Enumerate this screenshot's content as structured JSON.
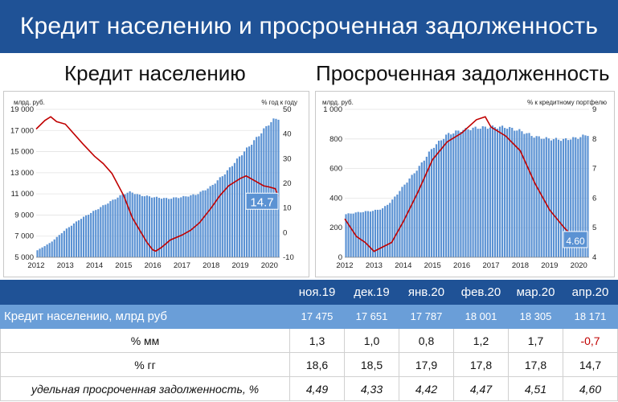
{
  "header": {
    "title": "Кредит населению и просроченная задолженность"
  },
  "left_panel": {
    "subtitle": "Кредит населению"
  },
  "right_panel": {
    "subtitle": "Просроченная задолженность"
  },
  "chart_data": [
    {
      "type": "bar+line",
      "xlabels": [
        "2012",
        "2013",
        "2014",
        "2015",
        "2016",
        "2017",
        "2018",
        "2019",
        "2020"
      ],
      "ylabel_left": "млрд. руб.",
      "ylabel_right": "% год к году",
      "yticks_left": [
        "5 000",
        "7 000",
        "9 000",
        "11 000",
        "13 000",
        "15 000",
        "17 000",
        "19 000"
      ],
      "yticks_right": [
        "-10",
        "0",
        "10",
        "20",
        "30",
        "40",
        "50"
      ],
      "ylim_left": [
        5000,
        19000
      ],
      "ylim_right": [
        -10,
        50
      ],
      "x_range": [
        2012.0,
        2020.35
      ],
      "series": [
        {
          "type": "bar",
          "axis": "left",
          "points": [
            [
              2012.0,
              5600
            ],
            [
              2012.5,
              6400
            ],
            [
              2013.0,
              7600
            ],
            [
              2013.5,
              8600
            ],
            [
              2014.0,
              9400
            ],
            [
              2014.5,
              10200
            ],
            [
              2015.0,
              11000
            ],
            [
              2015.25,
              11200
            ],
            [
              2015.5,
              10900
            ],
            [
              2016.0,
              10700
            ],
            [
              2016.5,
              10550
            ],
            [
              2017.0,
              10700
            ],
            [
              2017.5,
              10950
            ],
            [
              2018.0,
              11700
            ],
            [
              2018.5,
              13000
            ],
            [
              2019.0,
              14600
            ],
            [
              2019.5,
              16100
            ],
            [
              2020.0,
              17700
            ],
            [
              2020.2,
              18100
            ],
            [
              2020.3,
              18171
            ]
          ]
        },
        {
          "type": "line",
          "axis": "right",
          "color": "#c00000",
          "points": [
            [
              2012.0,
              42
            ],
            [
              2012.3,
              45.5
            ],
            [
              2012.5,
              47
            ],
            [
              2012.7,
              45
            ],
            [
              2013.0,
              44
            ],
            [
              2013.3,
              40
            ],
            [
              2013.6,
              36
            ],
            [
              2014.0,
              31
            ],
            [
              2014.3,
              28
            ],
            [
              2014.6,
              24
            ],
            [
              2015.0,
              15
            ],
            [
              2015.3,
              6
            ],
            [
              2015.6,
              0
            ],
            [
              2015.8,
              -4
            ],
            [
              2016.0,
              -7
            ],
            [
              2016.1,
              -7.5
            ],
            [
              2016.3,
              -6
            ],
            [
              2016.6,
              -3
            ],
            [
              2017.0,
              -1
            ],
            [
              2017.3,
              1
            ],
            [
              2017.6,
              4
            ],
            [
              2018.0,
              10
            ],
            [
              2018.3,
              15
            ],
            [
              2018.6,
              19
            ],
            [
              2019.0,
              22
            ],
            [
              2019.2,
              23
            ],
            [
              2019.5,
              21
            ],
            [
              2019.8,
              19
            ],
            [
              2020.0,
              18.5
            ],
            [
              2020.2,
              17.8
            ],
            [
              2020.3,
              14.7
            ]
          ]
        }
      ],
      "annotation": "14.7"
    },
    {
      "type": "bar+line",
      "xlabels": [
        "2012",
        "2013",
        "2014",
        "2015",
        "2016",
        "2017",
        "2018",
        "2019",
        "2020"
      ],
      "ylabel_left": "млрд. руб.",
      "ylabel_right": "% к кредитному портфелю",
      "yticks_left": [
        "0",
        "200",
        "400",
        "600",
        "800",
        "1 000"
      ],
      "yticks_right": [
        "4",
        "5",
        "6",
        "7",
        "8",
        "9"
      ],
      "ylim_left": [
        0,
        1000
      ],
      "ylim_right": [
        4,
        9
      ],
      "x_range": [
        2012.0,
        2020.35
      ],
      "series": [
        {
          "type": "bar",
          "axis": "left",
          "points": [
            [
              2012.0,
              290
            ],
            [
              2012.5,
              305
            ],
            [
              2013.0,
              315
            ],
            [
              2013.3,
              330
            ],
            [
              2013.6,
              380
            ],
            [
              2014.0,
              480
            ],
            [
              2014.5,
              600
            ],
            [
              2015.0,
              740
            ],
            [
              2015.5,
              830
            ],
            [
              2016.0,
              860
            ],
            [
              2016.5,
              875
            ],
            [
              2017.0,
              880
            ],
            [
              2017.5,
              880
            ],
            [
              2018.0,
              855
            ],
            [
              2018.5,
              815
            ],
            [
              2019.0,
              800
            ],
            [
              2019.5,
              795
            ],
            [
              2020.0,
              810
            ],
            [
              2020.3,
              830
            ]
          ]
        },
        {
          "type": "line",
          "axis": "right",
          "color": "#c00000",
          "points": [
            [
              2012.0,
              5.3
            ],
            [
              2012.2,
              5.0
            ],
            [
              2012.4,
              4.7
            ],
            [
              2012.7,
              4.5
            ],
            [
              2013.0,
              4.2
            ],
            [
              2013.3,
              4.35
            ],
            [
              2013.6,
              4.5
            ],
            [
              2014.0,
              5.2
            ],
            [
              2014.5,
              6.2
            ],
            [
              2015.0,
              7.3
            ],
            [
              2015.5,
              7.9
            ],
            [
              2016.0,
              8.2
            ],
            [
              2016.5,
              8.65
            ],
            [
              2016.8,
              8.75
            ],
            [
              2017.0,
              8.4
            ],
            [
              2017.5,
              8.1
            ],
            [
              2018.0,
              7.6
            ],
            [
              2018.5,
              6.5
            ],
            [
              2019.0,
              5.6
            ],
            [
              2019.5,
              5.0
            ],
            [
              2019.8,
              4.7
            ],
            [
              2020.0,
              4.45
            ],
            [
              2020.3,
              4.6
            ]
          ]
        }
      ],
      "annotation": "4.60"
    }
  ],
  "table": {
    "months": [
      "ноя.19",
      "дек.19",
      "янв.20",
      "фев.20",
      "мар.20",
      "апр.20"
    ],
    "rows": [
      {
        "label": "Кредит населению, млрд руб",
        "values": [
          "17 475",
          "17 651",
          "17 787",
          "18 001",
          "18 305",
          "18 171"
        ]
      },
      {
        "label": "% мм",
        "values": [
          "1,3",
          "1,0",
          "0,8",
          "1,2",
          "1,7",
          "-0,7"
        ]
      },
      {
        "label": "% гг",
        "values": [
          "18,6",
          "18,5",
          "17,9",
          "17,8",
          "17,8",
          "14,7"
        ]
      },
      {
        "label": "удельная просроченная задолженность, %",
        "values": [
          "4,49",
          "4,33",
          "4,42",
          "4,47",
          "4,51",
          "4,60"
        ]
      }
    ]
  },
  "colors": {
    "header_bg": "#1f5296",
    "credit_row_bg": "#6a9ed8",
    "bar": "#5b92d3",
    "line": "#c00000",
    "negative": "#c00000"
  }
}
